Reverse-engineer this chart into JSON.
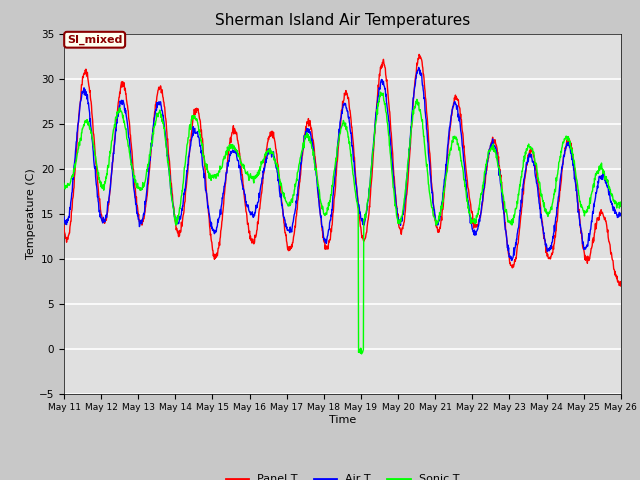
{
  "title": "Sherman Island Air Temperatures",
  "xlabel": "Time",
  "ylabel": "Temperature (C)",
  "ylim": [
    -5,
    35
  ],
  "annotation_text": "SI_mixed",
  "bg_color": "#e0e0e0",
  "fig_color": "#c8c8c8",
  "panel_t_color": "red",
  "air_t_color": "blue",
  "sonic_t_color": "lime",
  "legend_entries": [
    "Panel T",
    "Air T",
    "Sonic T"
  ],
  "yticks": [
    -5,
    0,
    5,
    10,
    15,
    20,
    25,
    30,
    35
  ],
  "xtick_days": [
    11,
    12,
    13,
    14,
    15,
    16,
    17,
    18,
    19,
    20,
    21,
    22,
    23,
    24,
    25,
    26
  ]
}
